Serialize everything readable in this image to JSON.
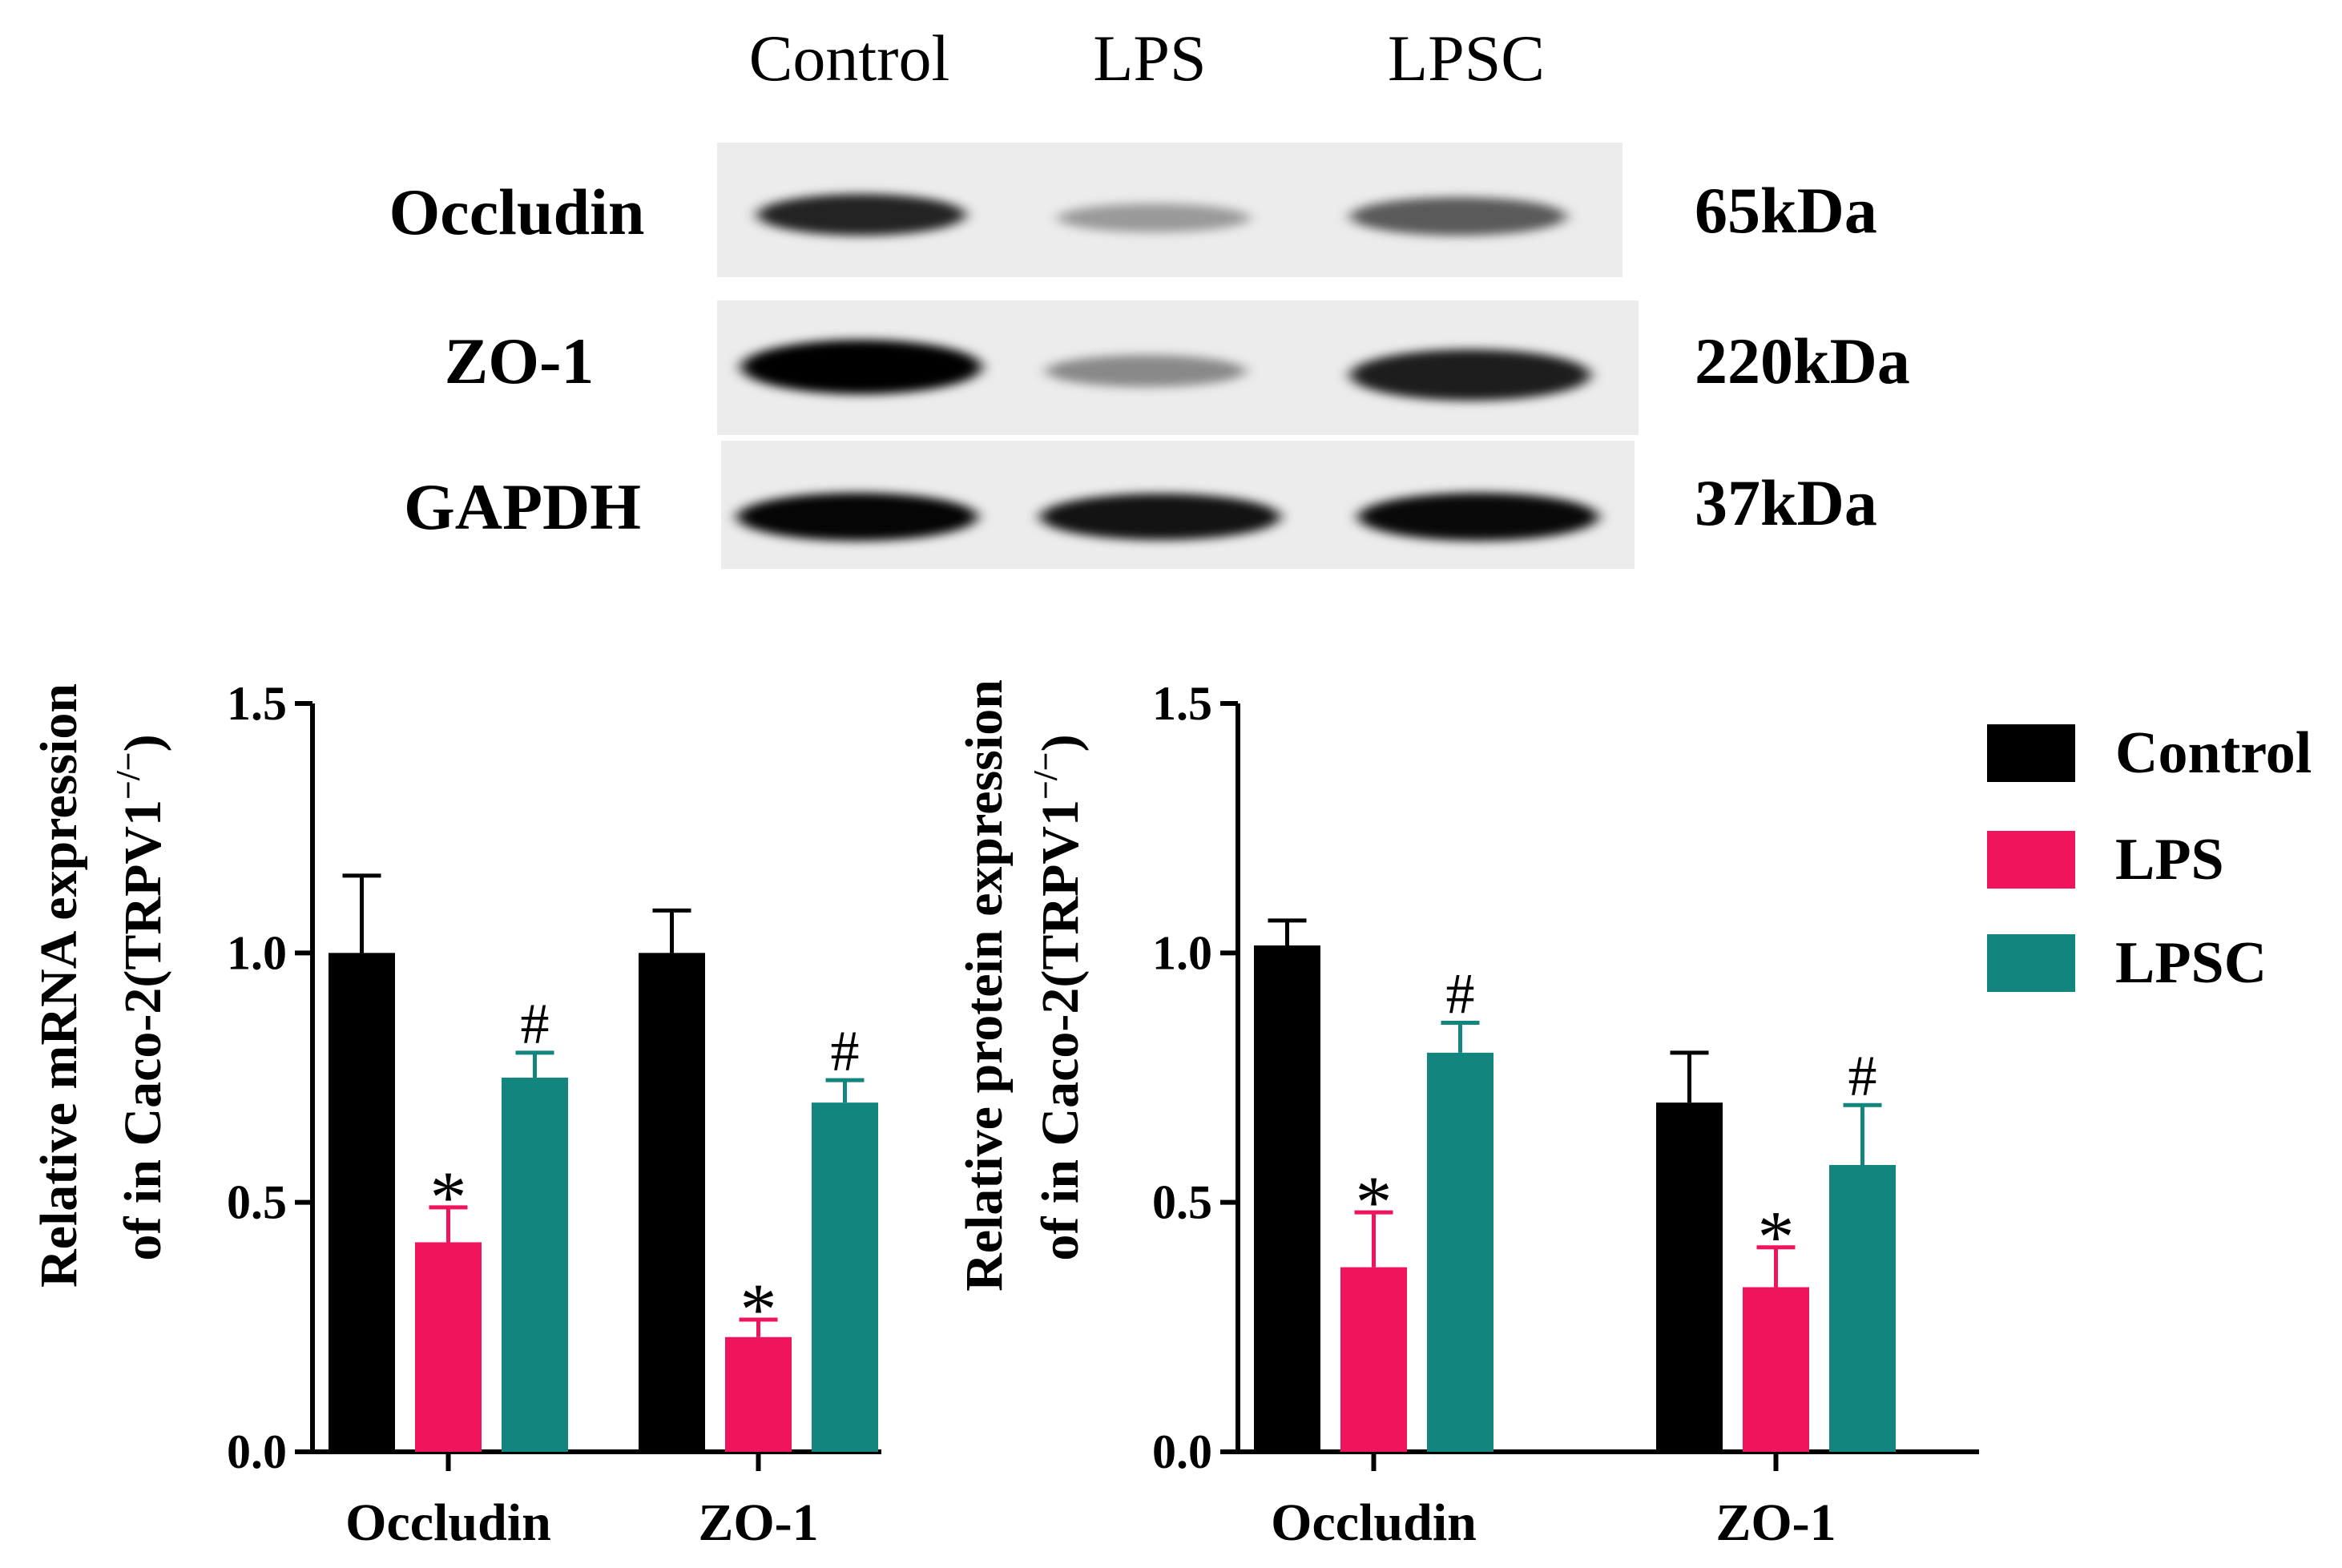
{
  "blot": {
    "lanes": [
      "Control",
      "LPS",
      "LPSC"
    ],
    "rows": [
      {
        "protein": "Occludin",
        "size": "65kDa",
        "intensities": [
          0.85,
          0.35,
          0.62
        ]
      },
      {
        "protein": "ZO-1",
        "size": "220kDa",
        "intensities": [
          1.0,
          0.42,
          0.88
        ]
      },
      {
        "protein": "GAPDH",
        "size": "37kDa",
        "intensities": [
          0.98,
          0.92,
          0.96
        ]
      }
    ]
  },
  "legend": {
    "items": [
      {
        "label": "Control",
        "color": "#000000"
      },
      {
        "label": "LPS",
        "color": "#f0145c"
      },
      {
        "label": "LPSC",
        "color": "#13857f"
      }
    ]
  },
  "chart_data": [
    {
      "type": "bar",
      "title": "",
      "ylabel_line1": "Relative mRNA expression",
      "ylabel_line2_prefix": "of in Caco-2(TRPV1",
      "ylabel_superscript": "−/−",
      "ylabel_line2_suffix": ")",
      "categories": [
        "Occludin",
        "ZO-1"
      ],
      "ylim": [
        0,
        1.5
      ],
      "yticks": [
        "0.0",
        "0.5",
        "1.0",
        "1.5"
      ],
      "series": [
        {
          "name": "Control",
          "color": "#000000",
          "values": [
            1.0,
            1.0
          ],
          "errors": [
            0.155,
            0.085
          ],
          "marks": [
            "",
            ""
          ]
        },
        {
          "name": "LPS",
          "color": "#f0145c",
          "values": [
            0.42,
            0.23
          ],
          "errors": [
            0.07,
            0.035
          ],
          "marks": [
            "*",
            "*"
          ]
        },
        {
          "name": "LPSC",
          "color": "#13857f",
          "values": [
            0.75,
            0.7
          ],
          "errors": [
            0.05,
            0.045
          ],
          "marks": [
            "#",
            "#"
          ]
        }
      ]
    },
    {
      "type": "bar",
      "title": "",
      "ylabel_line1": "Relative protein expression",
      "ylabel_line2_prefix": "of in Caco-2(TRPV1",
      "ylabel_superscript": "−/−",
      "ylabel_line2_suffix": ")",
      "categories": [
        "Occludin",
        "ZO-1"
      ],
      "ylim": [
        0,
        1.5
      ],
      "yticks": [
        "0.0",
        "0.5",
        "1.0",
        "1.5"
      ],
      "series": [
        {
          "name": "Control",
          "color": "#000000",
          "values": [
            1.015,
            0.7
          ],
          "errors": [
            0.05,
            0.1
          ],
          "marks": [
            "",
            ""
          ]
        },
        {
          "name": "LPS",
          "color": "#f0145c",
          "values": [
            0.37,
            0.33
          ],
          "errors": [
            0.11,
            0.08
          ],
          "marks": [
            "*",
            "*"
          ]
        },
        {
          "name": "LPSC",
          "color": "#13857f",
          "values": [
            0.8,
            0.575
          ],
          "errors": [
            0.06,
            0.12
          ],
          "marks": [
            "#",
            "#"
          ]
        }
      ]
    }
  ]
}
